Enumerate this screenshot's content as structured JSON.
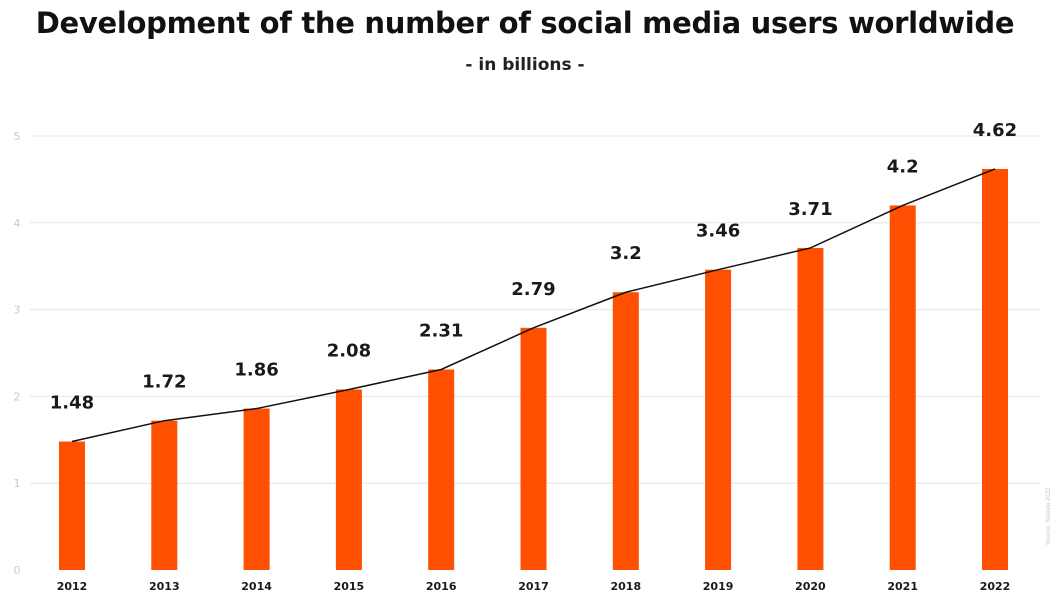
{
  "title": "Development of the number of social media users worldwide",
  "subtitle": "- in billions -",
  "source": "Source: Statista 2022",
  "colors": {
    "bar": "#ff4f00",
    "line": "#111111",
    "grid": "#e6e6e6",
    "axis_tick": "#c8c8c8",
    "label": "#1a1a1a"
  },
  "chart_data": {
    "type": "bar",
    "title": "Development of the number of social media users worldwide",
    "subtitle": "- in billions -",
    "categories": [
      "2012",
      "2013",
      "2014",
      "2015",
      "2016",
      "2017",
      "2018",
      "2019",
      "2020",
      "2021",
      "2022"
    ],
    "values": [
      1.48,
      1.72,
      1.86,
      2.08,
      2.31,
      2.79,
      3.2,
      3.46,
      3.71,
      4.2,
      4.62
    ],
    "data_labels": [
      "1.48",
      "1.72",
      "1.86",
      "2.08",
      "2.31",
      "2.79",
      "3.2",
      "3.46",
      "3.71",
      "4.2",
      "4.62"
    ],
    "yticks": [
      0,
      1,
      2,
      3,
      4,
      5
    ],
    "ylim": [
      0,
      5
    ],
    "xlabel": "",
    "ylabel": "",
    "grid": true,
    "overlay_line": true
  }
}
